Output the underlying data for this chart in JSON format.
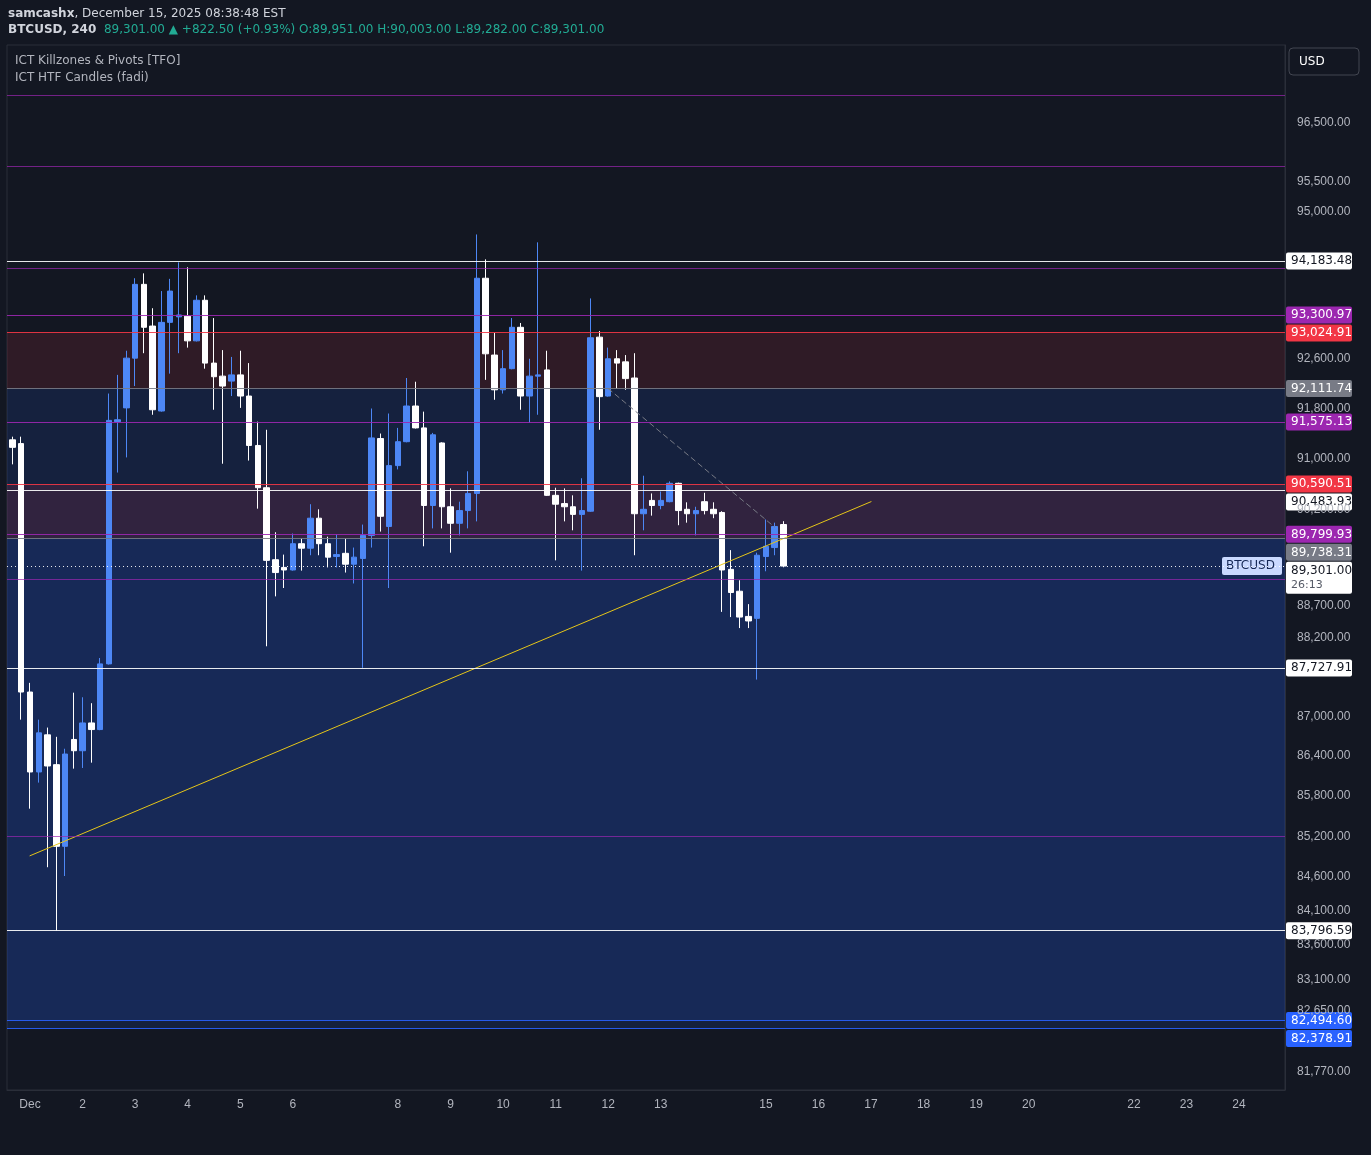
{
  "chart_data": {
    "type": "candlestick",
    "title": "BTCUSD, 240",
    "subtitle": "89,301.00 ▲ +822.50 (+0.93%) O:89,951.00 H:90,003.00 L:89,282.00 C:89,301.00",
    "annotations": [
      "samcashx, December 15, 2025 08:38:48 EST",
      "ICT Killzones & Pivots [TFO]",
      "ICT HTF Candles (fadi)",
      "USD",
      "BTCUSD",
      "26:13"
    ],
    "x": [
      "2025-11-30T16:00",
      "2025-11-30T20:00",
      "2025-12-01T00:00",
      "2025-12-01T04:00",
      "2025-12-01T08:00",
      "2025-12-01T12:00",
      "2025-12-01T16:00",
      "2025-12-01T20:00",
      "2025-12-02T00:00",
      "2025-12-02T04:00",
      "2025-12-02T08:00",
      "2025-12-02T12:00",
      "2025-12-02T16:00",
      "2025-12-02T20:00",
      "2025-12-03T00:00",
      "2025-12-03T04:00",
      "2025-12-03T08:00",
      "2025-12-03T12:00",
      "2025-12-03T16:00",
      "2025-12-03T20:00",
      "2025-12-04T00:00",
      "2025-12-04T04:00",
      "2025-12-04T08:00",
      "2025-12-04T12:00",
      "2025-12-04T16:00",
      "2025-12-04T20:00",
      "2025-12-05T00:00",
      "2025-12-05T04:00",
      "2025-12-05T08:00",
      "2025-12-05T12:00",
      "2025-12-05T16:00",
      "2025-12-05T20:00",
      "2025-12-06T00:00",
      "2025-12-06T04:00",
      "2025-12-06T08:00",
      "2025-12-06T12:00",
      "2025-12-06T16:00",
      "2025-12-06T20:00",
      "2025-12-07T00:00",
      "2025-12-07T04:00",
      "2025-12-07T08:00",
      "2025-12-07T12:00",
      "2025-12-07T16:00",
      "2025-12-07T20:00",
      "2025-12-08T00:00",
      "2025-12-08T04:00",
      "2025-12-08T08:00",
      "2025-12-08T12:00",
      "2025-12-08T16:00",
      "2025-12-08T20:00",
      "2025-12-09T00:00",
      "2025-12-09T04:00",
      "2025-12-09T08:00",
      "2025-12-09T12:00",
      "2025-12-09T16:00",
      "2025-12-09T20:00",
      "2025-12-10T00:00",
      "2025-12-10T04:00",
      "2025-12-10T08:00",
      "2025-12-10T12:00",
      "2025-12-10T16:00",
      "2025-12-10T20:00",
      "2025-12-11T00:00",
      "2025-12-11T04:00",
      "2025-12-11T08:00",
      "2025-12-11T12:00",
      "2025-12-11T16:00",
      "2025-12-11T20:00",
      "2025-12-12T00:00",
      "2025-12-12T04:00",
      "2025-12-12T08:00",
      "2025-12-12T12:00",
      "2025-12-12T16:00",
      "2025-12-12T20:00",
      "2025-12-13T00:00",
      "2025-12-13T04:00",
      "2025-12-13T08:00",
      "2025-12-13T12:00",
      "2025-12-13T16:00",
      "2025-12-13T20:00",
      "2025-12-14T00:00",
      "2025-12-14T04:00",
      "2025-12-14T08:00",
      "2025-12-14T12:00",
      "2025-12-14T16:00",
      "2025-12-14T20:00",
      "2025-12-15T00:00",
      "2025-12-15T04:00",
      "2025-12-15T08:00"
    ],
    "ohlc": [
      [
        91290,
        91340,
        90900,
        91170
      ],
      [
        91230,
        91340,
        86940,
        87360
      ],
      [
        87360,
        87500,
        85600,
        86150
      ],
      [
        86150,
        86940,
        85990,
        86740
      ],
      [
        86710,
        86820,
        84730,
        86240
      ],
      [
        86260,
        86680,
        83800,
        85040
      ],
      [
        85040,
        86500,
        84600,
        86420
      ],
      [
        86640,
        87350,
        86200,
        86470
      ],
      [
        86470,
        87280,
        86210,
        86890
      ],
      [
        86890,
        87190,
        86290,
        86790
      ],
      [
        86790,
        87880,
        86780,
        87790
      ],
      [
        87790,
        92030,
        87780,
        91600
      ],
      [
        91580,
        92330,
        90770,
        91610
      ],
      [
        91800,
        92720,
        91010,
        92600
      ],
      [
        92600,
        93900,
        92150,
        93800
      ],
      [
        93800,
        93980,
        92680,
        93100
      ],
      [
        93120,
        93410,
        91690,
        91770
      ],
      [
        91750,
        93690,
        91740,
        93180
      ],
      [
        93180,
        93890,
        92350,
        93690
      ],
      [
        93270,
        94160,
        92680,
        93300
      ],
      [
        93280,
        94080,
        92770,
        92880
      ],
      [
        92880,
        93620,
        92870,
        93540
      ],
      [
        93540,
        93620,
        92430,
        92520
      ],
      [
        92520,
        93250,
        91770,
        92300
      ],
      [
        92310,
        92730,
        90910,
        92150
      ],
      [
        92230,
        92620,
        91990,
        92330
      ],
      [
        92330,
        92720,
        91800,
        91990
      ],
      [
        91990,
        92520,
        90960,
        91200
      ],
      [
        91200,
        91580,
        90200,
        90530
      ],
      [
        90530,
        91450,
        88060,
        89390
      ],
      [
        89400,
        89830,
        88830,
        89200
      ],
      [
        89280,
        89480,
        88960,
        89240
      ],
      [
        89240,
        89810,
        89230,
        89650
      ],
      [
        89650,
        89730,
        89230,
        89580
      ],
      [
        89580,
        90270,
        89470,
        90050
      ],
      [
        90050,
        90190,
        89470,
        89650
      ],
      [
        89650,
        89760,
        89280,
        89440
      ],
      [
        89450,
        89800,
        89280,
        89480
      ],
      [
        89500,
        89730,
        89200,
        89330
      ],
      [
        89330,
        89590,
        89030,
        89440
      ],
      [
        89420,
        89950,
        87730,
        89780
      ],
      [
        89780,
        91790,
        89590,
        91320
      ],
      [
        91310,
        91390,
        89840,
        90080
      ],
      [
        89920,
        91710,
        88960,
        90880
      ],
      [
        90880,
        91480,
        90820,
        91260
      ],
      [
        91260,
        92280,
        91250,
        91830
      ],
      [
        91830,
        92220,
        91470,
        91480
      ],
      [
        91480,
        91740,
        89610,
        90250
      ],
      [
        90250,
        91400,
        89890,
        91370
      ],
      [
        91240,
        91250,
        89890,
        90230
      ],
      [
        90230,
        90520,
        89510,
        89970
      ],
      [
        89970,
        90310,
        89780,
        90170
      ],
      [
        90170,
        90790,
        89890,
        90440
      ],
      [
        90440,
        94620,
        90000,
        93900
      ],
      [
        93900,
        94210,
        92250,
        92670
      ],
      [
        92650,
        93010,
        91930,
        92090
      ],
      [
        92090,
        92730,
        92030,
        92430
      ],
      [
        92430,
        93250,
        92420,
        93100
      ],
      [
        93100,
        93170,
        91770,
        91990
      ],
      [
        91990,
        92590,
        91560,
        92310
      ],
      [
        92310,
        94490,
        91690,
        92330
      ],
      [
        92410,
        92720,
        90400,
        90410
      ],
      [
        90410,
        90530,
        89390,
        90270
      ],
      [
        90280,
        90520,
        90000,
        90230
      ],
      [
        90230,
        90410,
        89860,
        90110
      ],
      [
        90110,
        90680,
        89230,
        90170
      ],
      [
        90160,
        93570,
        90150,
        92930
      ],
      [
        92940,
        93040,
        91450,
        91980
      ],
      [
        91990,
        92770,
        91980,
        92590
      ],
      [
        92590,
        92730,
        92110,
        92520
      ],
      [
        92540,
        92650,
        92090,
        92270
      ],
      [
        92280,
        92680,
        89470,
        90120
      ],
      [
        90120,
        90720,
        89860,
        90190
      ],
      [
        90330,
        90440,
        90090,
        90250
      ],
      [
        90250,
        90470,
        90190,
        90330
      ],
      [
        90310,
        90630,
        90300,
        90600
      ],
      [
        90600,
        90610,
        89940,
        90170
      ],
      [
        90190,
        90300,
        89980,
        90120
      ],
      [
        90120,
        90230,
        89780,
        90170
      ],
      [
        90310,
        90450,
        90110,
        90170
      ],
      [
        90190,
        90300,
        90050,
        90120
      ],
      [
        90140,
        90160,
        88590,
        89240
      ],
      [
        89250,
        89550,
        88510,
        88890
      ],
      [
        88910,
        89080,
        88340,
        88510
      ],
      [
        88520,
        88710,
        88340,
        88450
      ],
      [
        88490,
        89510,
        87550,
        89470
      ],
      [
        89450,
        90030,
        89220,
        89610
      ],
      [
        89590,
        89980,
        89470,
        89920
      ],
      [
        89951,
        90003,
        89282,
        89301
      ]
    ],
    "colors": [
      "#ffffff",
      "#ffffff",
      "#ffffff",
      "#4d87f5",
      "#ffffff",
      "#ffffff",
      "#4d87f5",
      "#ffffff",
      "#4d87f5",
      "#ffffff",
      "#4d87f5",
      "#4d87f5",
      "#4d87f5",
      "#4d87f5",
      "#4d87f5",
      "#ffffff",
      "#ffffff",
      "#4d87f5",
      "#4d87f5",
      "#4d87f5",
      "#ffffff",
      "#4d87f5",
      "#ffffff",
      "#ffffff",
      "#ffffff",
      "#4d87f5",
      "#ffffff",
      "#ffffff",
      "#ffffff",
      "#ffffff",
      "#ffffff",
      "#ffffff",
      "#4d87f5",
      "#ffffff",
      "#4d87f5",
      "#ffffff",
      "#ffffff",
      "#4d87f5",
      "#ffffff",
      "#4d87f5",
      "#4d87f5",
      "#4d87f5",
      "#ffffff",
      "#4d87f5",
      "#4d87f5",
      "#4d87f5",
      "#ffffff",
      "#ffffff",
      "#4d87f5",
      "#ffffff",
      "#ffffff",
      "#4d87f5",
      "#4d87f5",
      "#4d87f5",
      "#ffffff",
      "#ffffff",
      "#4d87f5",
      "#4d87f5",
      "#ffffff",
      "#4d87f5",
      "#4d87f5",
      "#ffffff",
      "#ffffff",
      "#ffffff",
      "#ffffff",
      "#4d87f5",
      "#4d87f5",
      "#ffffff",
      "#4d87f5",
      "#ffffff",
      "#ffffff",
      "#ffffff",
      "#4d87f5",
      "#ffffff",
      "#4d87f5",
      "#4d87f5",
      "#ffffff",
      "#ffffff",
      "#4d87f5",
      "#ffffff",
      "#ffffff",
      "#ffffff",
      "#ffffff",
      "#ffffff",
      "#ffffff",
      "#4d87f5",
      "#4d87f5",
      "#4d87f5",
      "#ffffff"
    ],
    "series": [
      {
        "type": "line",
        "x": [
          "2025-12-01T00:00",
          "2025-12-17T00:00"
        ],
        "values": [
          84900,
          90310
        ],
        "color": "#e6c619",
        "line_style": "solid"
      },
      {
        "type": "line",
        "x": [
          "2025-12-12T00:00",
          "2025-12-15T04:00"
        ],
        "values": [
          92110,
          89910
        ],
        "color": "#787b86",
        "line_style": "dashed"
      }
    ],
    "log": true,
    "marker": "none",
    "grid": false,
    "ylim": [
      81500,
      97800
    ],
    "yticks": [
      {
        "value": 96500,
        "label": "96,500.00"
      },
      {
        "value": 95500,
        "label": "95,500.00"
      },
      {
        "value": 95000,
        "label": "95,000.00"
      },
      {
        "value": 92600,
        "label": "92,600.00"
      },
      {
        "value": 91800,
        "label": "91,800.00"
      },
      {
        "value": 91000,
        "label": "91,000.00"
      },
      {
        "value": 90200,
        "label": "90,200.00"
      },
      {
        "value": 88700,
        "label": "88,700.00"
      },
      {
        "value": 88200,
        "label": "88,200.00"
      },
      {
        "value": 87000,
        "label": "87,000.00"
      },
      {
        "value": 86400,
        "label": "86,400.00"
      },
      {
        "value": 85800,
        "label": "85,800.00"
      },
      {
        "value": 85200,
        "label": "85,200.00"
      },
      {
        "value": 84600,
        "label": "84,600.00"
      },
      {
        "value": 84100,
        "label": "84,100.00"
      },
      {
        "value": 83600,
        "label": "83,600.00"
      },
      {
        "value": 83100,
        "label": "83,100.00"
      },
      {
        "value": 82650,
        "label": "82,650.00"
      },
      {
        "value": 81770,
        "label": "81,770.00"
      }
    ],
    "xlim": [
      "2025-11-30T13:30",
      "2025-12-24T21:00"
    ],
    "xticks": [
      {
        "value": "2025-12-01",
        "label": "Dec"
      },
      {
        "value": "2025-12-02",
        "label": "2"
      },
      {
        "value": "2025-12-03",
        "label": "3"
      },
      {
        "value": "2025-12-04",
        "label": "4"
      },
      {
        "value": "2025-12-05",
        "label": "5"
      },
      {
        "value": "2025-12-06",
        "label": "6"
      },
      {
        "value": "2025-12-08",
        "label": "8"
      },
      {
        "value": "2025-12-09",
        "label": "9"
      },
      {
        "value": "2025-12-10",
        "label": "10"
      },
      {
        "value": "2025-12-11",
        "label": "11"
      },
      {
        "value": "2025-12-12",
        "label": "12"
      },
      {
        "value": "2025-12-13",
        "label": "13"
      },
      {
        "value": "2025-12-15",
        "label": "15"
      },
      {
        "value": "2025-12-16",
        "label": "16"
      },
      {
        "value": "2025-12-17",
        "label": "17"
      },
      {
        "value": "2025-12-18",
        "label": "18"
      },
      {
        "value": "2025-12-19",
        "label": "19"
      },
      {
        "value": "2025-12-20",
        "label": "20"
      },
      {
        "value": "2025-12-22",
        "label": "22"
      },
      {
        "value": "2025-12-23",
        "label": "23"
      },
      {
        "value": "2025-12-24",
        "label": "24"
      }
    ],
    "ref_lines": [
      {
        "axis": "y",
        "value": 96940,
        "color": "#9c27b0"
      },
      {
        "axis": "y",
        "value": 95760,
        "color": "#9c27b0"
      },
      {
        "axis": "y",
        "value": 94183.48,
        "label": "94,183.48",
        "color": "#ffffff"
      },
      {
        "axis": "y",
        "value": 94060,
        "color": "#9c27b0"
      },
      {
        "axis": "y",
        "value": 93300.97,
        "label": "93,300.97",
        "color": "#9c27b0"
      },
      {
        "axis": "y",
        "value": 93024.91,
        "label": "93,024.91",
        "color": "#f23645"
      },
      {
        "axis": "y",
        "value": 92111.74,
        "label": "92,111.74",
        "color": "#787b86"
      },
      {
        "axis": "y",
        "value": 91575.13,
        "label": "91,575.13",
        "color": "#9c27b0"
      },
      {
        "axis": "y",
        "value": 90590.51,
        "label": "90,590.51",
        "color": "#f23645"
      },
      {
        "axis": "y",
        "value": 90483.93,
        "label": "90,483.93",
        "color": "#ffffff"
      },
      {
        "axis": "y",
        "value": 89799.93,
        "label": "89,799.93",
        "color": "#9c27b0"
      },
      {
        "axis": "y",
        "value": 89738.31,
        "label": "89,738.31",
        "color": "#787b86"
      },
      {
        "axis": "y",
        "value": 89301,
        "label": "89,301.00",
        "color": "#ffffff",
        "line_style": "dotted"
      },
      {
        "axis": "y",
        "value": 89100,
        "color": "#9c27b0"
      },
      {
        "axis": "y",
        "value": 87727.91,
        "label": "87,727.91",
        "color": "#ffffff"
      },
      {
        "axis": "y",
        "value": 85190,
        "color": "#9c27b0"
      },
      {
        "axis": "y",
        "value": 83796.59,
        "label": "83,796.59",
        "color": "#ffffff"
      },
      {
        "axis": "y",
        "value": 82494.6,
        "label": "82,494.60",
        "color": "#2962ff"
      },
      {
        "axis": "y",
        "value": 82378.91,
        "label": "82,378.91",
        "color": "#2962ff"
      }
    ],
    "bands": [
      {
        "axis": "y",
        "from": 92111.74,
        "to": 93024.91,
        "color": "#f23645"
      },
      {
        "axis": "y",
        "from": 82494.6,
        "to": 92111.74,
        "color": "#2962ff"
      },
      {
        "axis": "y",
        "from": 89738.31,
        "to": 90590.51,
        "color": "#f23645"
      },
      {
        "axis": "y",
        "from": 82378.91,
        "to": 89738.31,
        "color": "#2962ff"
      }
    ]
  }
}
